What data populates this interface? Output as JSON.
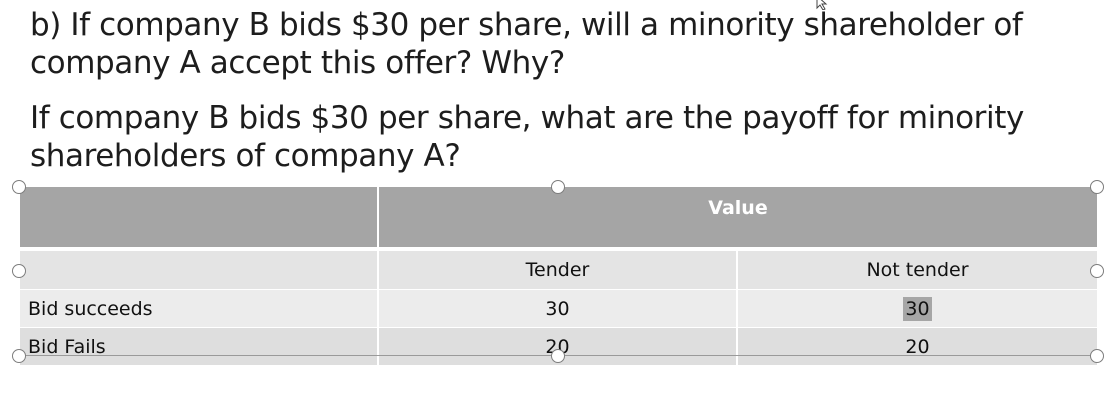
{
  "slide": {
    "question_b": "b) If company B bids $30 per share, will a minority shareholder of company A accept this offer? Why?",
    "question_payoff": "If company B bids $30 per share, what are the payoff for minority shareholders of company A?"
  },
  "table": {
    "header_blank": "",
    "header_value": "Value",
    "sub_header_blank": "",
    "col_tender": "Tender",
    "col_not_tender": "Not tender",
    "rows": [
      {
        "label": "Bid succeeds",
        "tender": "30",
        "not_tender": "30"
      },
      {
        "label": "Bid Fails",
        "tender": "20",
        "not_tender": "20"
      }
    ]
  },
  "colors": {
    "header_fill": "#a5a5a5",
    "band_light": "#ececec",
    "band_dark": "#dedede",
    "selection": "#a6a6a6"
  }
}
